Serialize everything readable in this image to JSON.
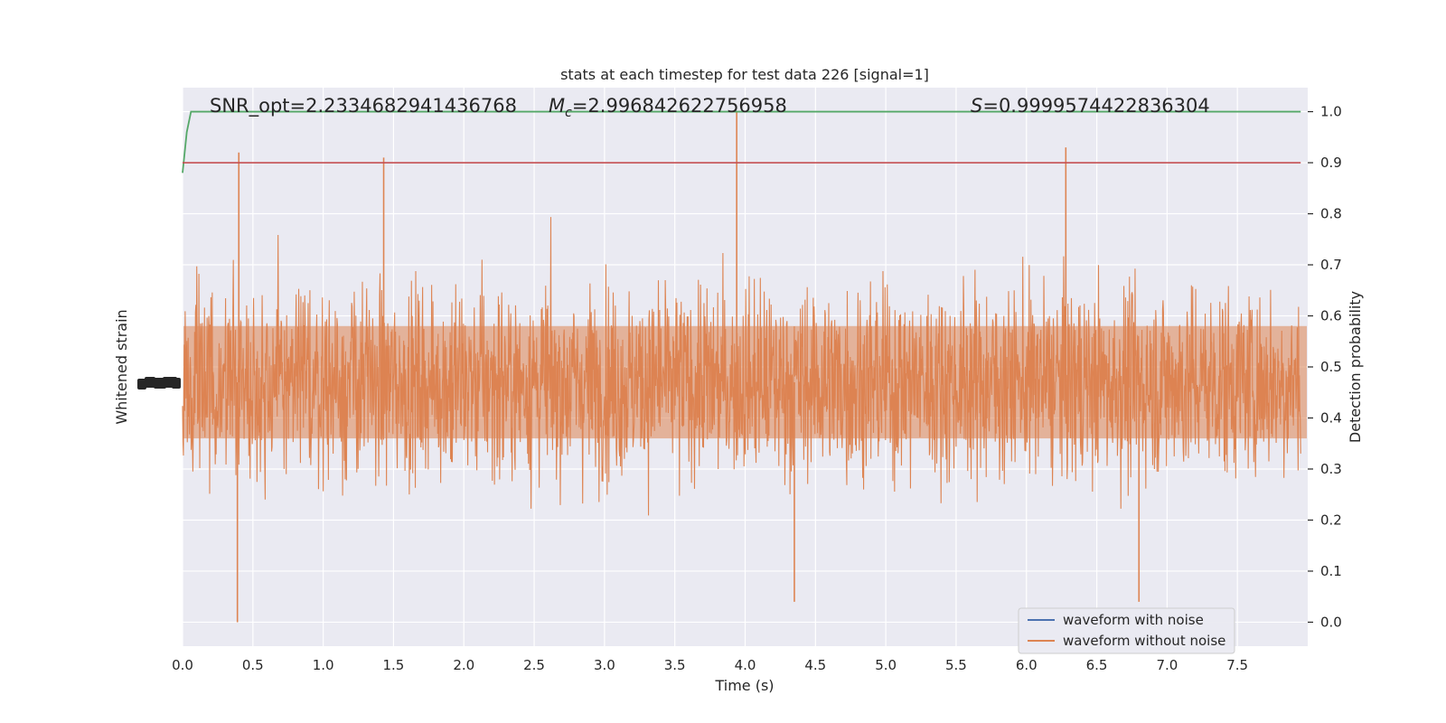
{
  "chart_data": {
    "type": "line",
    "title": "stats at each timestep for test data 226 [signal=1]",
    "xlabel": "Time (s)",
    "ylabel_left": "Whitened strain",
    "ylabel_right": "Detection probability",
    "xlim": [
      0.0,
      8.0
    ],
    "ylim_right": [
      -0.047,
      1.047
    ],
    "x_ticks": [
      0.0,
      0.5,
      1.0,
      1.5,
      2.0,
      2.5,
      3.0,
      3.5,
      4.0,
      4.5,
      5.0,
      5.5,
      6.0,
      6.5,
      7.0,
      7.5
    ],
    "x_tick_labels": [
      "0.0",
      "0.5",
      "1.0",
      "1.5",
      "2.0",
      "2.5",
      "3.0",
      "3.5",
      "4.0",
      "4.5",
      "5.0",
      "5.5",
      "6.0",
      "6.5",
      "7.0",
      "7.5"
    ],
    "y_right_ticks": [
      0.0,
      0.1,
      0.2,
      0.3,
      0.4,
      0.5,
      0.6,
      0.7,
      0.8,
      0.9,
      1.0
    ],
    "y_right_tick_labels": [
      "0.0",
      "0.1",
      "0.2",
      "0.3",
      "0.4",
      "0.5",
      "0.6",
      "0.7",
      "0.8",
      "0.9",
      "1.0"
    ],
    "grid": true,
    "legend_position": "lower-right",
    "series": [
      {
        "name": "waveform with noise",
        "color": "#4c72b0",
        "kind": "strain"
      },
      {
        "name": "waveform without noise",
        "color": "#dd8452",
        "kind": "strain-noise",
        "center": 0.47,
        "spread": 0.13,
        "peaks": [
          [
            3.94,
            1.0
          ],
          [
            0.39,
            0.0
          ],
          [
            6.28,
            0.93
          ],
          [
            0.4,
            0.92
          ],
          [
            1.43,
            0.91
          ],
          [
            6.8,
            0.04
          ],
          [
            4.35,
            0.04
          ]
        ]
      },
      {
        "kind": "probability",
        "color": "#55a868",
        "x": [
          0.0,
          0.03,
          0.06,
          0.1,
          7.95
        ],
        "y": [
          0.88,
          0.96,
          1.0,
          1.0,
          1.0
        ]
      },
      {
        "kind": "threshold",
        "color": "#c44e52",
        "y": 0.9
      }
    ],
    "annotations": [
      {
        "text": "SNR_opt=2.2334682941436768"
      },
      {
        "prefix": "M",
        "sub": "c",
        "text": "=2.996842622756958"
      },
      {
        "prefix": "S",
        "text": "=0.9999574422836304"
      }
    ]
  }
}
